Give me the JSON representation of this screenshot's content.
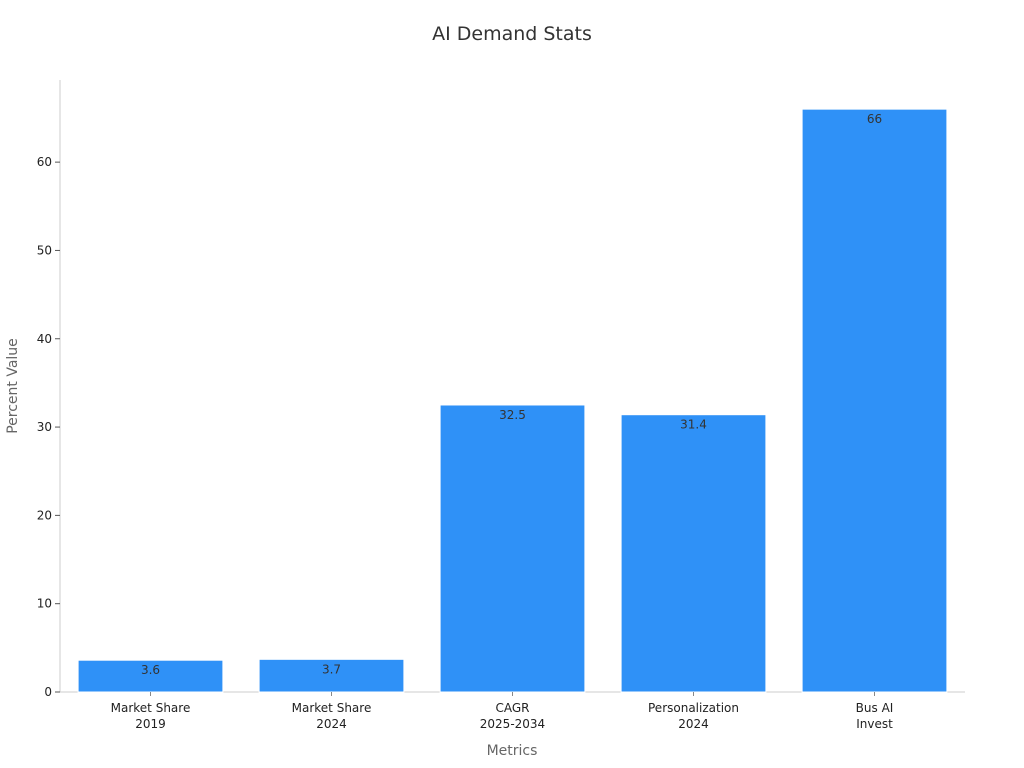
{
  "chart_data": {
    "type": "bar",
    "title": "AI Demand Stats",
    "xlabel": "Metrics",
    "ylabel": "Percent Value",
    "categories": [
      [
        "Market Share",
        "2019"
      ],
      [
        "Market Share",
        "2024"
      ],
      [
        "CAGR",
        "2025-2034"
      ],
      [
        "Personalization",
        "2024"
      ],
      [
        "Bus AI",
        "Invest"
      ]
    ],
    "values": [
      3.6,
      3.7,
      32.5,
      31.4,
      66
    ],
    "data_labels": [
      "3.6",
      "3.7",
      "32.5",
      "31.4",
      "66"
    ],
    "yticks": [
      0,
      10,
      20,
      30,
      40,
      50,
      60
    ],
    "ylim": [
      0,
      69.3
    ],
    "bar_color": "#2f91f7",
    "grid": false,
    "legend": false
  }
}
